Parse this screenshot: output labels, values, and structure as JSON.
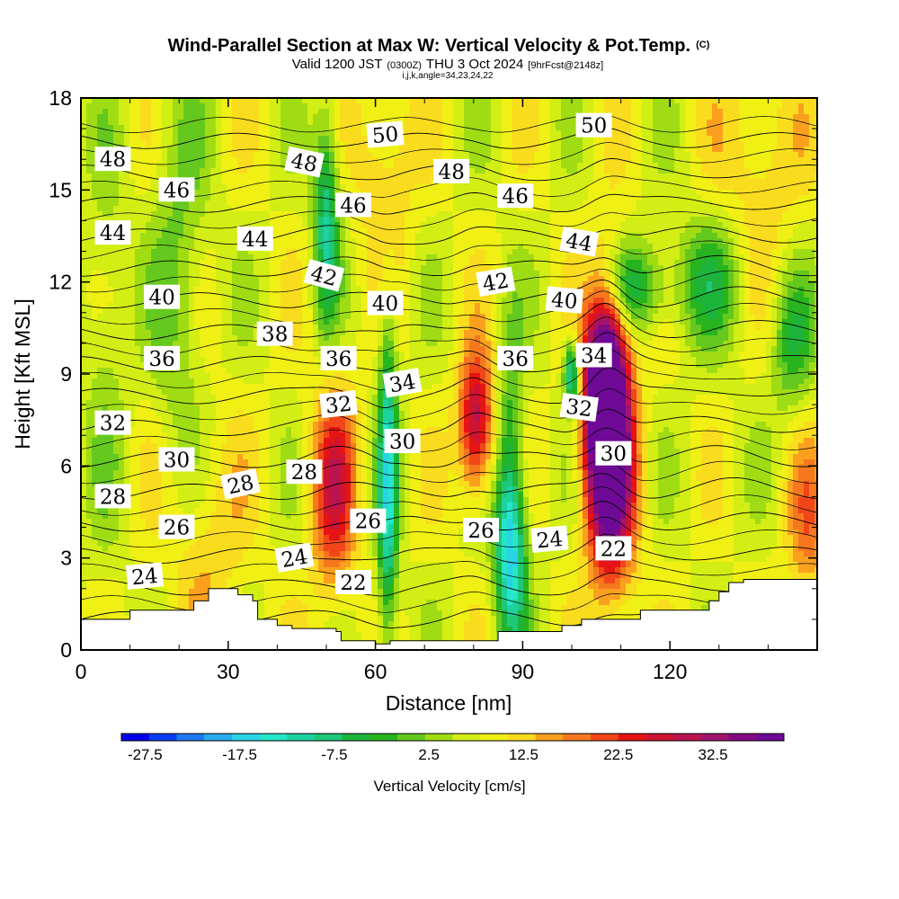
{
  "chart_data": {
    "type": "heatmap",
    "title": "Wind-Parallel Section at Max W: Vertical Velocity & Pot.Temp.",
    "title_tag": "(C)",
    "subtitle_main": "Valid 1200 JST",
    "subtitle_utc": "(0300Z)",
    "subtitle_date": "THU 3 Oct 2024",
    "subtitle_fcst": "[9hrFcst@2148z]",
    "subtitle_params": "i,j,k,angle=34,23,24,22",
    "xlabel": "Distance [nm]",
    "ylabel": "Height [Kft MSL]",
    "xlim": [
      0,
      150
    ],
    "ylim": [
      0,
      18
    ],
    "x_ticks": [
      0,
      30,
      60,
      90,
      120
    ],
    "x_tick_labels": [
      "0",
      "30",
      "60",
      "90",
      "120"
    ],
    "y_ticks": [
      0,
      3,
      6,
      9,
      12,
      15,
      18
    ],
    "y_tick_labels": [
      "0",
      "3",
      "6",
      "9",
      "12",
      "15",
      "18"
    ],
    "colorbar": {
      "label": "Vertical Velocity [cm/s]",
      "min": -30,
      "max": 40,
      "step": 2.5,
      "tick_values": [
        -27.5,
        -17.5,
        -7.5,
        2.5,
        12.5,
        22.5,
        32.5
      ],
      "tick_labels": [
        "-27.5",
        "-17.5",
        "-7.5",
        "2.5",
        "12.5",
        "22.5",
        "32.5"
      ],
      "colors": [
        "#0000ee",
        "#0a3cf5",
        "#1e78f0",
        "#28aaee",
        "#2ad2e6",
        "#25e6c8",
        "#1ed2a0",
        "#1ec878",
        "#1eb43c",
        "#28b41e",
        "#64c81e",
        "#a0dc14",
        "#d2ee14",
        "#f0f014",
        "#fadc1e",
        "#faa01e",
        "#f5781e",
        "#f04619",
        "#e61414",
        "#cd1432",
        "#b91450",
        "#a0146e",
        "#820a82",
        "#6e0a96"
      ]
    },
    "w_features": [
      {
        "x": 107,
        "y": 8.0,
        "sx": 3.0,
        "sy": 2.6,
        "amp": 45
      },
      {
        "x": 108.5,
        "y": 5.0,
        "sx": 3.5,
        "sy": 2.5,
        "amp": 14
      },
      {
        "x": 100,
        "y": 9.0,
        "sx": 1.1,
        "sy": 0.8,
        "amp": -20
      },
      {
        "x": 80.5,
        "y": 7.4,
        "sx": 2.5,
        "sy": 1.6,
        "amp": 20
      },
      {
        "x": 51.5,
        "y": 5.3,
        "sx": 3.2,
        "sy": 2.4,
        "amp": 15
      },
      {
        "x": 62.5,
        "y": 5.5,
        "sx": 1.4,
        "sy": 4.0,
        "amp": -18
      },
      {
        "x": 87.5,
        "y": 3.0,
        "sx": 2.3,
        "sy": 2.0,
        "amp": -18
      },
      {
        "x": 87.5,
        "y": 6.5,
        "sx": 1.8,
        "sy": 3.0,
        "amp": -9
      },
      {
        "x": 50,
        "y": 14.0,
        "sx": 1.8,
        "sy": 2.5,
        "amp": -15
      },
      {
        "x": 112,
        "y": 11.8,
        "sx": 5.0,
        "sy": 1.0,
        "amp": -12
      },
      {
        "x": 128,
        "y": 12.0,
        "sx": 5.0,
        "sy": 1.5,
        "amp": -9
      },
      {
        "x": 145,
        "y": 10.0,
        "sx": 3.0,
        "sy": 1.6,
        "amp": -9
      },
      {
        "x": 25,
        "y": 3.5,
        "sx": 6.0,
        "sy": 3.0,
        "amp": 5
      },
      {
        "x": 148,
        "y": 4.0,
        "sx": 3.0,
        "sy": 2.0,
        "amp": 8
      },
      {
        "x": 138,
        "y": 16.0,
        "sx": 6.0,
        "sy": 2.5,
        "amp": 5
      },
      {
        "x": 62,
        "y": 16.0,
        "sx": 4.0,
        "sy": 2.5,
        "amp": 6
      },
      {
        "x": 20,
        "y": 12.0,
        "sx": 4.0,
        "sy": 5.0,
        "amp": -6
      },
      {
        "x": 5,
        "y": 10.0,
        "sx": 3.0,
        "sy": 5.0,
        "amp": -4
      }
    ],
    "w_base": 2.5,
    "terrain": [
      [
        0,
        1.0
      ],
      [
        10,
        1.0
      ],
      [
        10,
        1.3
      ],
      [
        23,
        1.3
      ],
      [
        23,
        1.6
      ],
      [
        26,
        1.6
      ],
      [
        26,
        2.0
      ],
      [
        32,
        2.0
      ],
      [
        32,
        1.8
      ],
      [
        35,
        1.8
      ],
      [
        35,
        1.6
      ],
      [
        36,
        1.6
      ],
      [
        36,
        1.0
      ],
      [
        40,
        1.0
      ],
      [
        40,
        0.8
      ],
      [
        43,
        0.8
      ],
      [
        43,
        0.7
      ],
      [
        52,
        0.7
      ],
      [
        52,
        0.6
      ],
      [
        53,
        0.6
      ],
      [
        53,
        0.3
      ],
      [
        60,
        0.3
      ],
      [
        60,
        0.2
      ],
      [
        63,
        0.2
      ],
      [
        63,
        0.3
      ],
      [
        85,
        0.3
      ],
      [
        85,
        0.6
      ],
      [
        98,
        0.6
      ],
      [
        98,
        0.8
      ],
      [
        102,
        0.8
      ],
      [
        102,
        1.0
      ],
      [
        114,
        1.0
      ],
      [
        114,
        1.3
      ],
      [
        128,
        1.3
      ],
      [
        128,
        1.6
      ],
      [
        130,
        1.6
      ],
      [
        130,
        1.9
      ],
      [
        132,
        1.9
      ],
      [
        132,
        2.2
      ],
      [
        135,
        2.2
      ],
      [
        135,
        2.3
      ],
      [
        151,
        2.3
      ],
      [
        151,
        2.0
      ],
      [
        150,
        2.0
      ],
      [
        150,
        0
      ],
      [
        0,
        0
      ]
    ],
    "isentrope_values": [
      20,
      22,
      24,
      26,
      28,
      30,
      32,
      34,
      36,
      38,
      40,
      42,
      44,
      46,
      48,
      50
    ],
    "contour_labels": [
      {
        "text": "48",
        "x": 6.5,
        "y": 16.0,
        "angle": 0
      },
      {
        "text": "46",
        "x": 19.5,
        "y": 15.0,
        "angle": 0
      },
      {
        "text": "44",
        "x": 6.5,
        "y": 13.6,
        "angle": 0
      },
      {
        "text": "44",
        "x": 35.5,
        "y": 13.4,
        "angle": 0
      },
      {
        "text": "40",
        "x": 16.5,
        "y": 11.5,
        "angle": 0
      },
      {
        "text": "38",
        "x": 39.5,
        "y": 10.3,
        "angle": 0
      },
      {
        "text": "36",
        "x": 16.5,
        "y": 9.5,
        "angle": 0
      },
      {
        "text": "32",
        "x": 6.5,
        "y": 7.4,
        "angle": 0
      },
      {
        "text": "30",
        "x": 19.5,
        "y": 6.2,
        "angle": 0
      },
      {
        "text": "28",
        "x": 6.5,
        "y": 5.0,
        "angle": 0
      },
      {
        "text": "28",
        "x": 32.5,
        "y": 5.4,
        "angle": -12
      },
      {
        "text": "28",
        "x": 45.5,
        "y": 5.8,
        "angle": 0
      },
      {
        "text": "26",
        "x": 19.5,
        "y": 4.0,
        "angle": 0
      },
      {
        "text": "24",
        "x": 13.0,
        "y": 2.4,
        "angle": -5
      },
      {
        "text": "24",
        "x": 43.5,
        "y": 3.0,
        "angle": -10
      },
      {
        "text": "22",
        "x": 55.5,
        "y": 2.2,
        "angle": 0
      },
      {
        "text": "26",
        "x": 58.5,
        "y": 4.2,
        "angle": 0
      },
      {
        "text": "30",
        "x": 65.5,
        "y": 6.8,
        "angle": 0
      },
      {
        "text": "34",
        "x": 65.5,
        "y": 8.7,
        "angle": -10
      },
      {
        "text": "32",
        "x": 52.5,
        "y": 8.0,
        "angle": -6
      },
      {
        "text": "36",
        "x": 52.5,
        "y": 9.5,
        "angle": 0
      },
      {
        "text": "40",
        "x": 62.0,
        "y": 11.3,
        "angle": 0
      },
      {
        "text": "42",
        "x": 49.5,
        "y": 12.2,
        "angle": 15
      },
      {
        "text": "46",
        "x": 55.5,
        "y": 14.5,
        "angle": 0
      },
      {
        "text": "48",
        "x": 45.5,
        "y": 15.9,
        "angle": 12
      },
      {
        "text": "50",
        "x": 62.0,
        "y": 16.8,
        "angle": -5
      },
      {
        "text": "48",
        "x": 75.5,
        "y": 15.6,
        "angle": 0
      },
      {
        "text": "46",
        "x": 88.5,
        "y": 14.8,
        "angle": 0
      },
      {
        "text": "42",
        "x": 84.5,
        "y": 12.0,
        "angle": -10
      },
      {
        "text": "36",
        "x": 88.5,
        "y": 9.5,
        "angle": 0
      },
      {
        "text": "26",
        "x": 81.5,
        "y": 3.9,
        "angle": 0
      },
      {
        "text": "24",
        "x": 95.5,
        "y": 3.6,
        "angle": -5
      },
      {
        "text": "22",
        "x": 108.5,
        "y": 3.3,
        "angle": 0
      },
      {
        "text": "30",
        "x": 108.5,
        "y": 6.4,
        "angle": 0
      },
      {
        "text": "32",
        "x": 101.5,
        "y": 7.9,
        "angle": 8
      },
      {
        "text": "34",
        "x": 104.5,
        "y": 9.6,
        "angle": 0
      },
      {
        "text": "40",
        "x": 98.5,
        "y": 11.4,
        "angle": 5
      },
      {
        "text": "44",
        "x": 101.5,
        "y": 13.3,
        "angle": 10
      },
      {
        "text": "50",
        "x": 104.5,
        "y": 17.1,
        "angle": 0
      }
    ],
    "grid": false,
    "legend": "colorbar-bottom"
  }
}
